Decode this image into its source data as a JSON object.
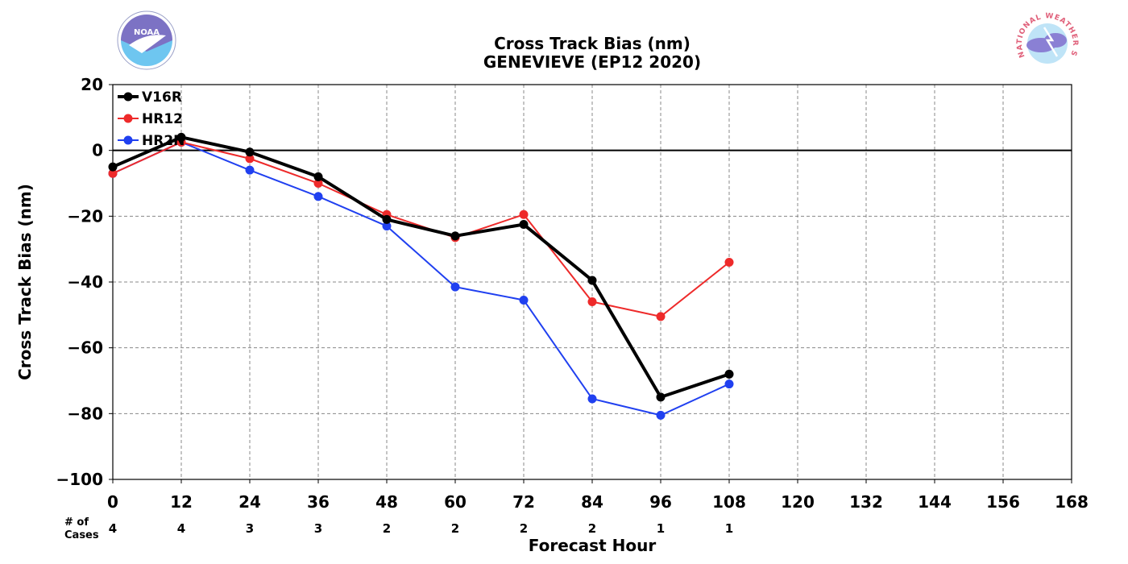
{
  "chart_data": {
    "type": "line",
    "title": "Cross Track Bias (nm)",
    "subtitle": "GENEVIEVE (EP12 2020)",
    "xlabel": "Forecast Hour",
    "ylabel": "Cross Track Bias (nm)",
    "xlim": [
      0,
      168
    ],
    "ylim": [
      -100,
      20
    ],
    "xticks": [
      0,
      12,
      24,
      36,
      48,
      60,
      72,
      84,
      96,
      108,
      120,
      132,
      144,
      156,
      168
    ],
    "yticks": [
      20,
      0,
      -20,
      -40,
      -60,
      -80,
      -100
    ],
    "ytick_labels": [
      "20",
      "0",
      "−20",
      "−40",
      "−60",
      "−80",
      "−100"
    ],
    "grid": true,
    "legend_position": "top-left",
    "zero_line": true,
    "cases_label": [
      "# of",
      "Cases"
    ],
    "cases_x": [
      0,
      12,
      24,
      36,
      48,
      60,
      72,
      84,
      96,
      108
    ],
    "cases": [
      "4",
      "4",
      "3",
      "3",
      "2",
      "2",
      "2",
      "2",
      "1",
      "1"
    ],
    "series": [
      {
        "name": "V16R",
        "color": "#000000",
        "width": 4,
        "x": [
          0,
          12,
          24,
          36,
          48,
          60,
          72,
          84,
          96,
          108
        ],
        "y": [
          -5,
          4,
          -0.5,
          -8,
          -21,
          -26,
          -22.5,
          -39.5,
          -75,
          -68
        ]
      },
      {
        "name": "HR12",
        "color": "#ee2a2a",
        "width": 2,
        "x": [
          0,
          12,
          24,
          36,
          48,
          60,
          72,
          84,
          96,
          108
        ],
        "y": [
          -7,
          2.5,
          -2.5,
          -10,
          -19.5,
          -26.5,
          -19.5,
          -46,
          -50.5,
          -34
        ]
      },
      {
        "name": "HR2N",
        "color": "#2040f0",
        "width": 2,
        "x": [
          0,
          12,
          24,
          36,
          48,
          60,
          72,
          84,
          96,
          108
        ],
        "y": [
          -7,
          2.5,
          -6,
          -14,
          -23,
          -41.5,
          -45.5,
          -75.5,
          -80.5,
          -71
        ]
      }
    ]
  },
  "logos": {
    "left": {
      "name": "noaa-logo",
      "text": "NOAA"
    },
    "right": {
      "name": "nws-logo",
      "text": "NATIONAL WEATHER SERVICE"
    }
  }
}
